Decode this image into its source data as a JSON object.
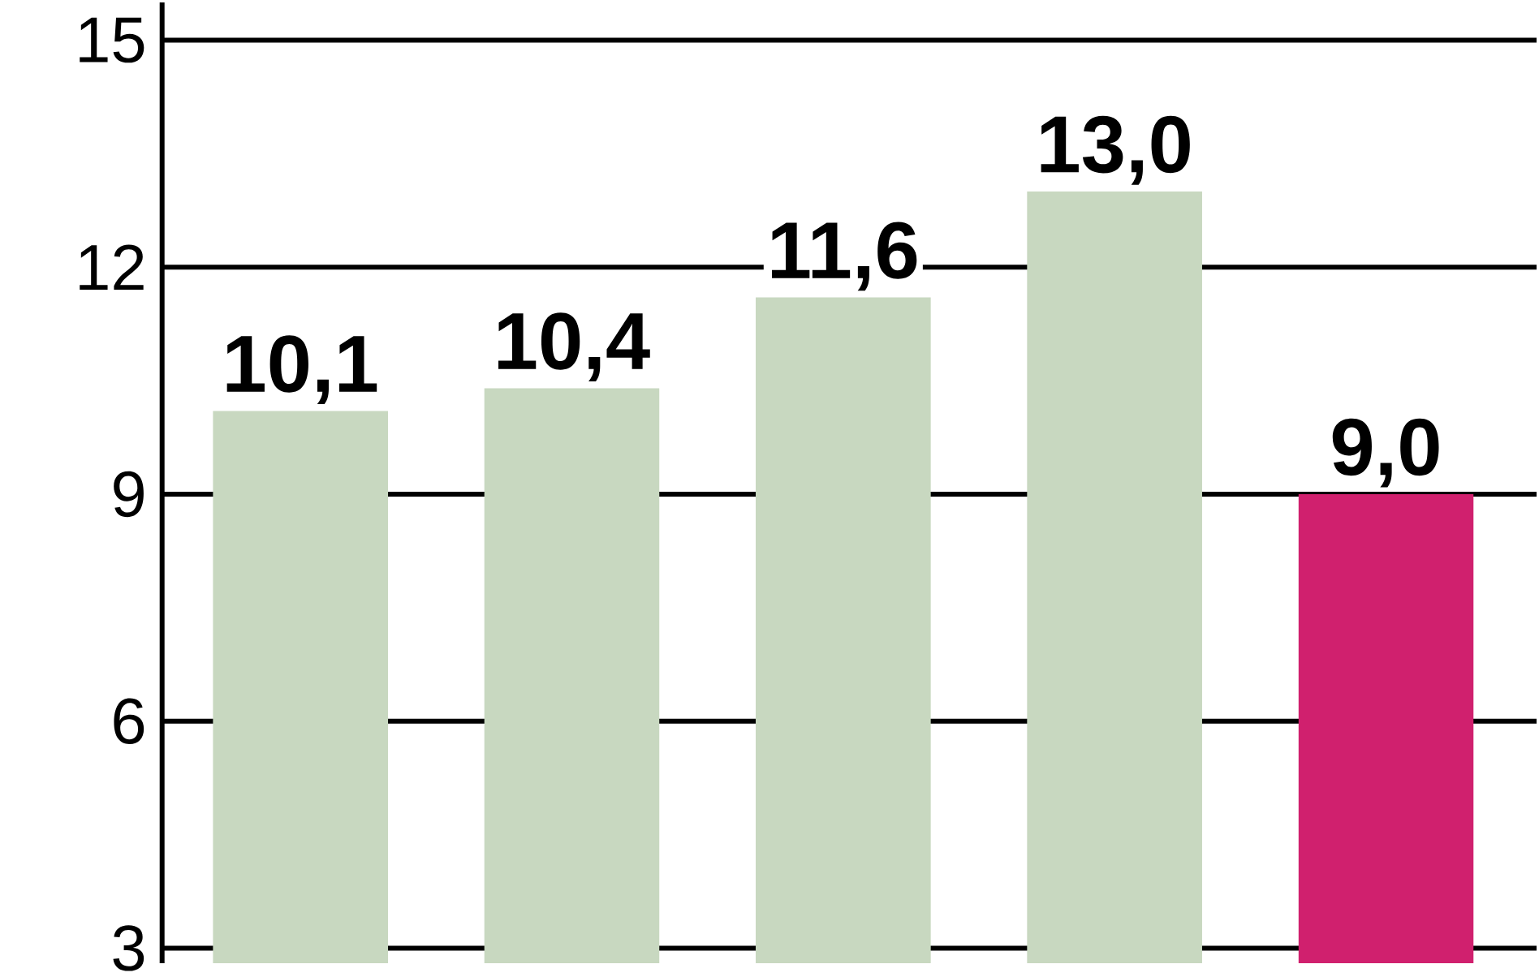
{
  "chart_data": {
    "type": "bar",
    "categories": [
      null,
      null,
      null,
      null,
      null
    ],
    "values": [
      10.1,
      10.4,
      11.6,
      13.0,
      9.0
    ],
    "colors": [
      "#c8d8c0",
      "#c8d8c0",
      "#c8d8c0",
      "#c8d8c0",
      "#d0206e"
    ],
    "value_labels": [
      "10,1",
      "10,4",
      "11,6",
      "13,0",
      "9,0"
    ],
    "ylim": [
      2.8,
      15.5
    ],
    "yticks": [
      3,
      6,
      9,
      12,
      15
    ],
    "grid": "y"
  }
}
